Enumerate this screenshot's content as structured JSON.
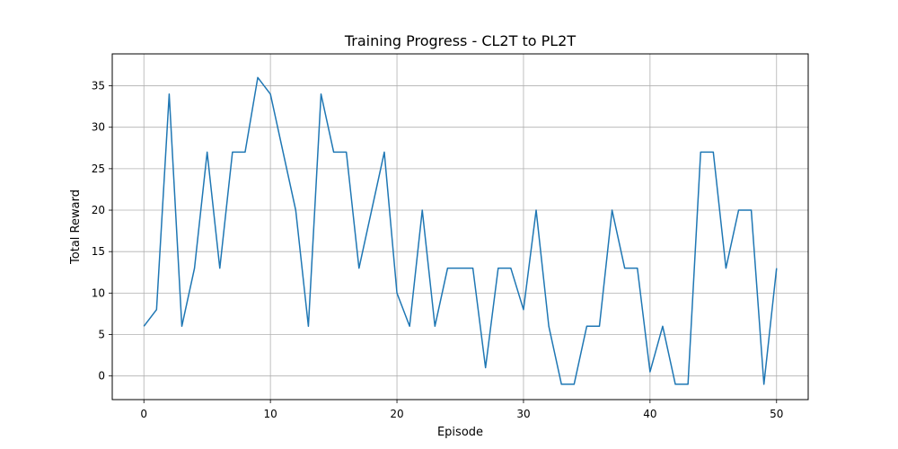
{
  "chart_data": {
    "type": "line",
    "title": "Training Progress - CL2T to PL2T",
    "xlabel": "Episode",
    "ylabel": "Total Reward",
    "xlim": [
      -2.5,
      52.5
    ],
    "ylim": [
      -2.85,
      38.85
    ],
    "grid": true,
    "x_ticks": [
      0,
      10,
      20,
      30,
      40,
      50
    ],
    "y_ticks": [
      0,
      5,
      10,
      15,
      20,
      25,
      30,
      35
    ],
    "series": [
      {
        "color": "#1f77b4",
        "x": [
          0,
          1,
          2,
          3,
          4,
          5,
          6,
          7,
          8,
          9,
          10,
          11,
          12,
          13,
          14,
          15,
          16,
          17,
          18,
          19,
          20,
          21,
          22,
          23,
          24,
          25,
          26,
          27,
          28,
          29,
          30,
          31,
          32,
          33,
          34,
          35,
          36,
          37,
          38,
          39,
          40,
          41,
          42,
          43,
          44,
          45,
          46,
          47,
          48,
          49,
          50
        ],
        "values": [
          6,
          8,
          34,
          6,
          13,
          27,
          13,
          27,
          27,
          36,
          34,
          27,
          20,
          6,
          34,
          27,
          27,
          13,
          20,
          27,
          10,
          6,
          20,
          6,
          13,
          13,
          13,
          1,
          13,
          13,
          8,
          20,
          6,
          -1,
          -1,
          6,
          6,
          20,
          13,
          13,
          0.5,
          6,
          -1,
          -1,
          27,
          27,
          13,
          20,
          20,
          -1,
          13
        ]
      }
    ]
  }
}
